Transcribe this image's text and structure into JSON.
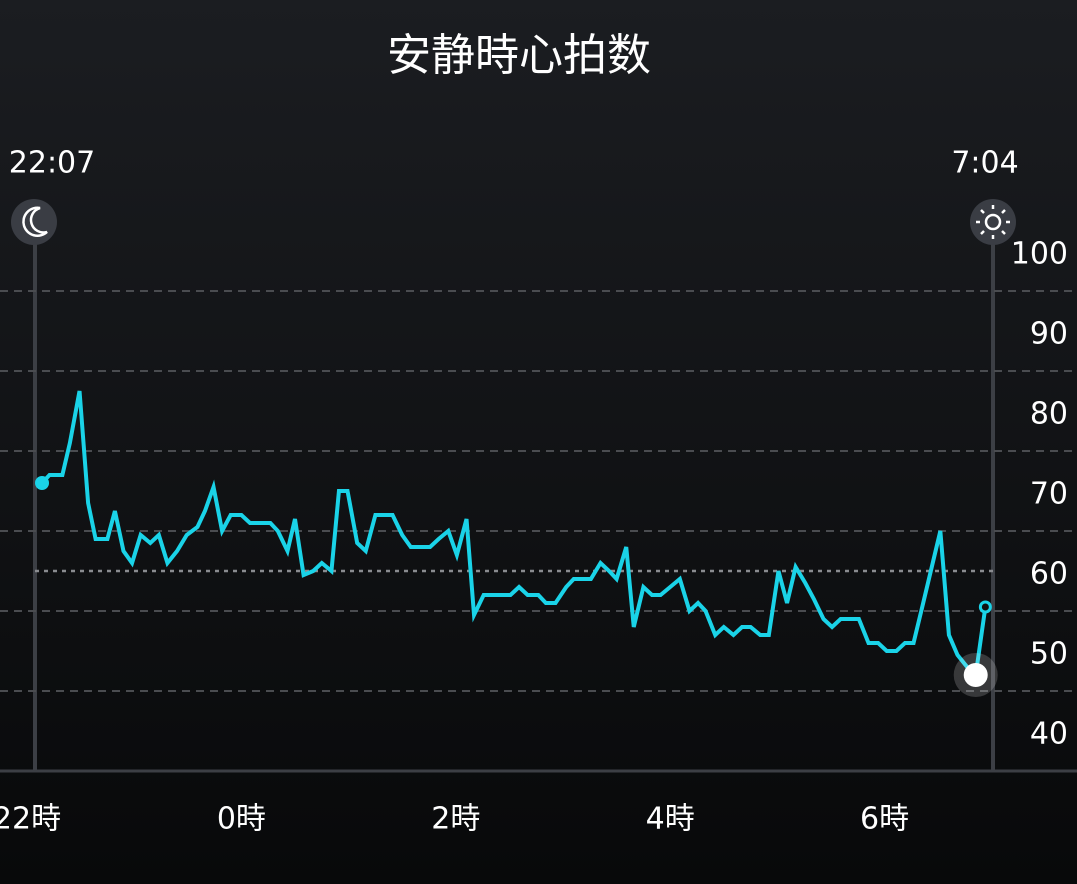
{
  "chart_data": {
    "type": "line",
    "title": "安静時心拍数",
    "sleep_start_label": "22:07",
    "wake_label": "7:04",
    "x": [
      22.14,
      22.21,
      22.33,
      22.4,
      22.49,
      22.57,
      22.64,
      22.75,
      22.82,
      22.9,
      22.98,
      23.06,
      23.15,
      23.23,
      23.31,
      23.4,
      23.49,
      23.59,
      23.66,
      23.74,
      23.82,
      23.9,
      24.0,
      24.08,
      24.17,
      24.27,
      24.34,
      24.43,
      24.5,
      24.58,
      24.67,
      24.75,
      24.84,
      24.91,
      24.99,
      25.08,
      25.16,
      25.25,
      25.33,
      25.41,
      25.5,
      25.58,
      25.68,
      25.76,
      25.84,
      25.93,
      26.01,
      26.1,
      26.17,
      26.26,
      26.36,
      26.44,
      26.51,
      26.59,
      26.67,
      26.77,
      26.84,
      26.93,
      27.03,
      27.1,
      27.19,
      27.26,
      27.35,
      27.43,
      27.5,
      27.59,
      27.66,
      27.75,
      27.83,
      27.91,
      28.0,
      28.09,
      28.18,
      28.26,
      28.33,
      28.42,
      28.5,
      28.59,
      28.67,
      28.75,
      28.84,
      28.92,
      29.01,
      29.09,
      29.17,
      29.26,
      29.34,
      29.43,
      29.51,
      29.59,
      29.68,
      29.76,
      29.85,
      29.94,
      30.02,
      30.11,
      30.19,
      30.27,
      30.36,
      30.44,
      30.52,
      30.6,
      30.68,
      30.77,
      30.85,
      30.94
    ],
    "series": [
      {
        "name": "安静時心拍数",
        "color": "#1ad3e8",
        "values": [
          76,
          77,
          77,
          81,
          87.5,
          73.5,
          69,
          69,
          72.5,
          67.5,
          66,
          69.5,
          68.5,
          69.5,
          66,
          67.5,
          69.5,
          70.5,
          72.5,
          75.5,
          70,
          72,
          72,
          71,
          71,
          71,
          70,
          67.5,
          71.5,
          64.5,
          65,
          66,
          65,
          75,
          75,
          68.5,
          67.5,
          72,
          72,
          72,
          69.5,
          68,
          68,
          68,
          69,
          70,
          67,
          71.5,
          59.5,
          62,
          62,
          62,
          62,
          63,
          62,
          62,
          61,
          61,
          63,
          64,
          64,
          64,
          66,
          65,
          64,
          68,
          58,
          63,
          62,
          62,
          63,
          64,
          60,
          61,
          60,
          57,
          58,
          57,
          58,
          58,
          57,
          57,
          65,
          61,
          65.5,
          63.5,
          61.5,
          59,
          58,
          59,
          59,
          59,
          56,
          56,
          55,
          55,
          56,
          56,
          61,
          65.5,
          70,
          57,
          54.5,
          53,
          52,
          60.5
        ]
      }
    ],
    "reference_line": 65,
    "xlim": [
      21.95,
      32.05
    ],
    "xticks": [
      {
        "value": 22,
        "label": "22時"
      },
      {
        "value": 24,
        "label": "0時"
      },
      {
        "value": 26,
        "label": "2時"
      },
      {
        "value": 28,
        "label": "4時"
      },
      {
        "value": 30,
        "label": "6時"
      }
    ],
    "ylim": [
      40,
      100
    ],
    "yticks": [
      40,
      50,
      60,
      70,
      80,
      90,
      100
    ],
    "grid": true
  }
}
